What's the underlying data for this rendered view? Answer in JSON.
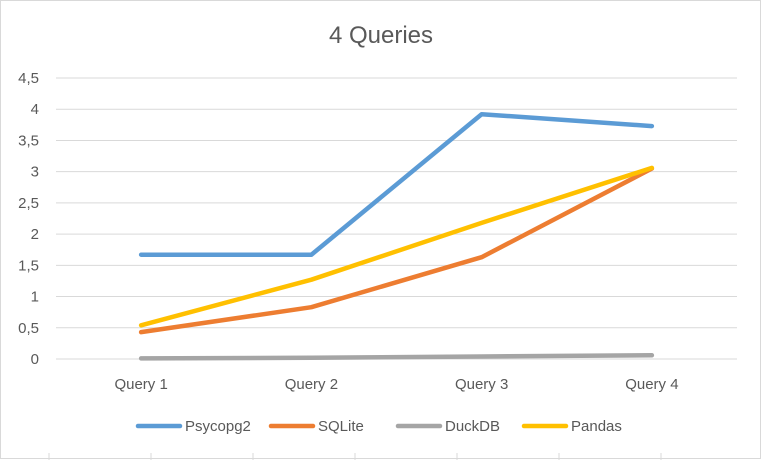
{
  "chart_data": {
    "type": "line",
    "title": "4 Queries",
    "xlabel": "",
    "ylabel": "",
    "categories": [
      "Query 1",
      "Query 2",
      "Query 3",
      "Query 4"
    ],
    "ylim": [
      0,
      4.5
    ],
    "yticks": [
      0,
      0.5,
      1,
      1.5,
      2,
      2.5,
      3,
      3.5,
      4,
      4.5
    ],
    "ytick_labels": [
      "0",
      "0,5",
      "1",
      "1,5",
      "2",
      "2,5",
      "3",
      "3,5",
      "4",
      "4,5"
    ],
    "grid": true,
    "legend_position": "bottom",
    "series": [
      {
        "name": "Psycopg2",
        "color": "#5b9bd5",
        "values": [
          1.67,
          1.67,
          3.92,
          3.73
        ]
      },
      {
        "name": "SQLite",
        "color": "#ed7d31",
        "values": [
          0.43,
          0.83,
          1.63,
          3.05
        ]
      },
      {
        "name": "DuckDB",
        "color": "#a5a5a5",
        "values": [
          0.01,
          0.02,
          0.04,
          0.06
        ]
      },
      {
        "name": "Pandas",
        "color": "#ffc000",
        "values": [
          0.54,
          1.27,
          2.18,
          3.06
        ]
      }
    ]
  }
}
